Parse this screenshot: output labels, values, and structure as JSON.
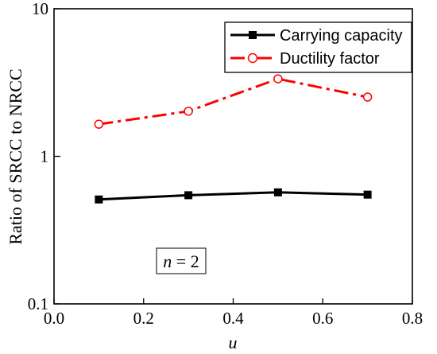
{
  "chart_data": {
    "type": "line",
    "xlabel": "u",
    "ylabel": "Ratio of SRCC to NRCC",
    "xlim": [
      0.0,
      0.8
    ],
    "ylim": [
      0.1,
      10
    ],
    "yscale": "log",
    "x_ticks": [
      "0.0",
      "0.2",
      "0.4",
      "0.6",
      "0.8"
    ],
    "y_ticks": [
      "0.1",
      "1",
      "10"
    ],
    "grid": false,
    "legend_position": "top-right",
    "annotation": {
      "var": "n",
      "eq": " = 2"
    },
    "series": [
      {
        "name": "Carrying capacity",
        "color": "#000000",
        "marker": "filled-square",
        "linestyle": "solid",
        "x": [
          0.1,
          0.3,
          0.5,
          0.7
        ],
        "y": [
          0.51,
          0.545,
          0.57,
          0.55
        ]
      },
      {
        "name": "Ductility factor",
        "color": "#ff0000",
        "marker": "open-circle",
        "linestyle": "dash-dot",
        "x": [
          0.1,
          0.3,
          0.5,
          0.7
        ],
        "y": [
          1.65,
          2.02,
          3.35,
          2.52
        ]
      }
    ]
  }
}
